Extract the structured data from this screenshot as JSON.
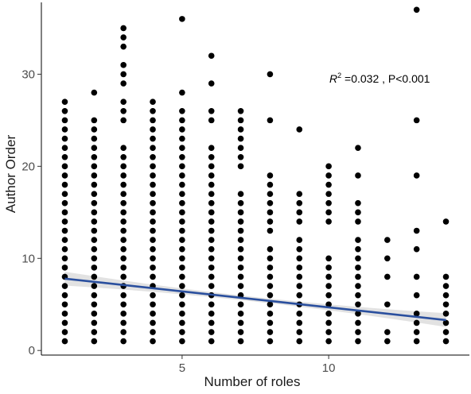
{
  "chart_data": {
    "type": "scatter",
    "title": "",
    "xlabel": "Number of roles",
    "ylabel": "Author Order",
    "xlim": [
      0.2,
      14.8
    ],
    "ylim": [
      -0.5,
      37.8
    ],
    "xticks": [
      5,
      10
    ],
    "yticks": [
      0,
      10,
      20,
      30
    ],
    "grid": false,
    "annotation": {
      "r_symbol": "R",
      "r_superscript": "2",
      "text": " =0.032 , P<0.001"
    },
    "regression": {
      "x_start": 1,
      "x_end": 14,
      "y_start": 7.8,
      "y_end": 3.3,
      "color": "#2a4f9e",
      "band_color": "#bfbfbf"
    },
    "point_color": "#000000",
    "points": {
      "1": [
        1,
        2,
        3,
        4,
        5,
        6,
        7,
        8,
        9,
        10,
        11,
        12,
        13,
        14,
        15,
        16,
        17,
        18,
        19,
        20,
        21,
        22,
        23,
        24,
        25,
        26,
        27
      ],
      "2": [
        1,
        2,
        3,
        4,
        5,
        6,
        7,
        8,
        9,
        10,
        11,
        12,
        13,
        14,
        15,
        16,
        17,
        18,
        19,
        20,
        21,
        22,
        23,
        24,
        25,
        28
      ],
      "3": [
        1,
        2,
        3,
        4,
        5,
        6,
        7,
        8,
        9,
        10,
        11,
        12,
        13,
        14,
        15,
        16,
        17,
        18,
        19,
        20,
        21,
        22,
        25,
        26,
        27,
        29,
        30,
        31,
        33,
        34,
        35
      ],
      "4": [
        1,
        2,
        3,
        4,
        5,
        6,
        7,
        8,
        9,
        10,
        11,
        12,
        13,
        14,
        15,
        16,
        17,
        18,
        19,
        20,
        21,
        22,
        23,
        24,
        25,
        26,
        27
      ],
      "5": [
        1,
        2,
        3,
        4,
        5,
        6,
        7,
        8,
        9,
        10,
        11,
        12,
        13,
        14,
        15,
        16,
        17,
        18,
        19,
        20,
        21,
        22,
        23,
        24,
        25,
        26,
        28,
        36
      ],
      "6": [
        1,
        2,
        3,
        4,
        5,
        6,
        7,
        8,
        9,
        10,
        11,
        12,
        13,
        14,
        15,
        16,
        17,
        18,
        19,
        20,
        21,
        22,
        25,
        26,
        29,
        32
      ],
      "7": [
        1,
        2,
        3,
        4,
        5,
        6,
        7,
        8,
        9,
        10,
        11,
        12,
        13,
        14,
        15,
        16,
        17,
        20,
        21,
        22,
        23,
        24,
        25,
        26
      ],
      "8": [
        1,
        2,
        3,
        4,
        5,
        6,
        7,
        8,
        9,
        10,
        11,
        13,
        14,
        15,
        16,
        17,
        18,
        19,
        25,
        30
      ],
      "9": [
        1,
        2,
        3,
        4,
        5,
        6,
        7,
        8,
        9,
        10,
        11,
        12,
        14,
        15,
        16,
        17,
        24
      ],
      "10": [
        1,
        2,
        3,
        4,
        5,
        6,
        7,
        8,
        9,
        10,
        14,
        15,
        16,
        17,
        18,
        19,
        20
      ],
      "11": [
        1,
        2,
        3,
        4,
        5,
        6,
        7,
        8,
        9,
        10,
        11,
        12,
        14,
        15,
        16,
        19,
        22
      ],
      "12": [
        1,
        2,
        5,
        8,
        10,
        12
      ],
      "13": [
        1,
        2,
        3,
        4,
        6,
        8,
        11,
        13,
        19,
        25,
        37
      ],
      "14": [
        1,
        2,
        3,
        4,
        5,
        6,
        7,
        8,
        14
      ]
    }
  }
}
